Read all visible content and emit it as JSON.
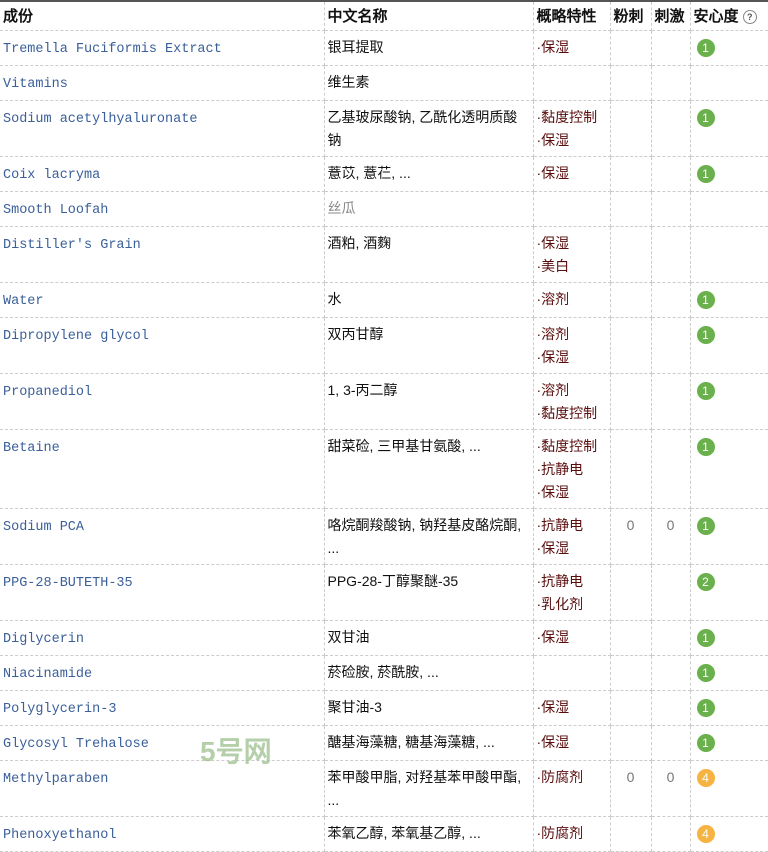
{
  "header": {
    "ingredient": "成份",
    "chinese_name": "中文名称",
    "properties": "概略特性",
    "acne": "粉刺",
    "irritation": "刺激",
    "safety": "安心度",
    "help": "?"
  },
  "colors": {
    "safe": "#6ab04c",
    "caution": "#f5b342"
  },
  "rows": [
    {
      "en": "Tremella Fuciformis Extract",
      "cn": "银耳提取",
      "feat": [
        "保湿"
      ],
      "acne": "",
      "irr": "",
      "safety": "1"
    },
    {
      "en": "Vitamins",
      "cn": "维生素",
      "feat": [],
      "acne": "",
      "irr": "",
      "safety": ""
    },
    {
      "en": "Sodium acetylhyaluronate",
      "cn": "乙基玻尿酸钠, 乙酰化透明质酸钠",
      "feat": [
        "黏度控制",
        "保湿"
      ],
      "acne": "",
      "irr": "",
      "safety": "1"
    },
    {
      "en": "Coix lacryma",
      "cn": "薏苡, 薏芢, ...",
      "feat": [
        "保湿"
      ],
      "acne": "",
      "irr": "",
      "safety": "1"
    },
    {
      "en": "Smooth Loofah",
      "cn": "丝瓜",
      "grey": true,
      "feat": [],
      "acne": "",
      "irr": "",
      "safety": ""
    },
    {
      "en": "Distiller's Grain",
      "cn": "酒粕, 酒麴",
      "feat": [
        "保湿",
        "美白"
      ],
      "acne": "",
      "irr": "",
      "safety": ""
    },
    {
      "en": "Water",
      "cn": "水",
      "feat": [
        "溶剂"
      ],
      "acne": "",
      "irr": "",
      "safety": "1"
    },
    {
      "en": "Dipropylene glycol",
      "cn": "双丙甘醇",
      "feat": [
        "溶剂",
        "保湿"
      ],
      "acne": "",
      "irr": "",
      "safety": "1"
    },
    {
      "en": "Propanediol",
      "cn": "1, 3-丙二醇",
      "feat": [
        "溶剂",
        "黏度控制"
      ],
      "acne": "",
      "irr": "",
      "safety": "1"
    },
    {
      "en": "Betaine",
      "cn": "甜菜硷, 三甲基甘氨酸, ...",
      "feat": [
        "黏度控制",
        "抗静电",
        "保湿"
      ],
      "acne": "",
      "irr": "",
      "safety": "1"
    },
    {
      "en": "Sodium PCA",
      "cn": "咯烷酮羧酸钠, 钠羟基皮酪烷酮, ...",
      "feat": [
        "抗静电",
        "保湿"
      ],
      "acne": "0",
      "irr": "0",
      "safety": "1"
    },
    {
      "en": "PPG-28-BUTETH-35",
      "cn": "PPG-28-丁醇聚醚-35",
      "feat": [
        "抗静电",
        "乳化剂"
      ],
      "acne": "",
      "irr": "",
      "safety": "2"
    },
    {
      "en": "Diglycerin",
      "cn": "双甘油",
      "feat": [
        "保湿"
      ],
      "acne": "",
      "irr": "",
      "safety": "1"
    },
    {
      "en": "Niacinamide",
      "cn": "菸硷胺, 菸酰胺, ...",
      "feat": [],
      "acne": "",
      "irr": "",
      "safety": "1"
    },
    {
      "en": "Polyglycerin-3",
      "cn": "聚甘油-3",
      "feat": [
        "保湿"
      ],
      "acne": "",
      "irr": "",
      "safety": "1"
    },
    {
      "en": "Glycosyl Trehalose",
      "cn": "醣基海藻糖, 糖基海藻糖, ...",
      "feat": [
        "保湿"
      ],
      "acne": "",
      "irr": "",
      "safety": "1"
    },
    {
      "en": "Methylparaben",
      "cn": "苯甲酸甲脂, 对羟基苯甲酸甲酯, ...",
      "feat": [
        "防腐剂"
      ],
      "acne": "0",
      "irr": "0",
      "safety": "4"
    },
    {
      "en": "Phenoxyethanol",
      "cn": "苯氧乙醇, 苯氧基乙醇, ...",
      "feat": [
        "防腐剂"
      ],
      "acne": "",
      "irr": "",
      "safety": "4"
    }
  ],
  "watermark": {
    "logo": "5号网"
  }
}
